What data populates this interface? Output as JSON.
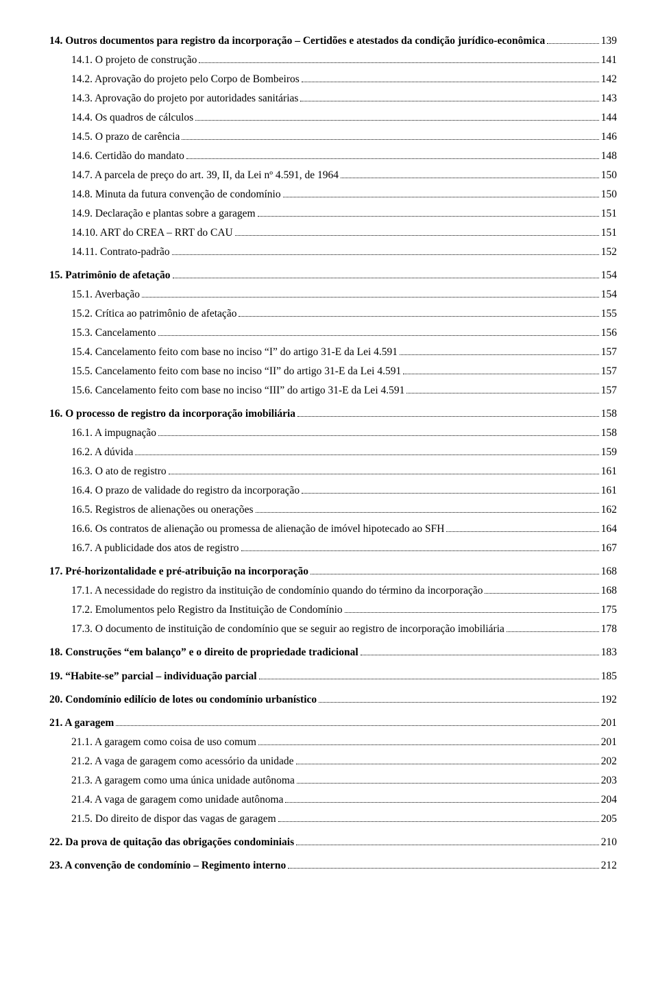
{
  "items": [
    {
      "lvl": 0,
      "bold": true,
      "text": "14. Outros documentos para registro da incorporação – Certidões e atestados da condição jurídico-econômica",
      "page": "139"
    },
    {
      "lvl": 1,
      "text": "14.1. O projeto de construção",
      "page": "141"
    },
    {
      "lvl": 1,
      "text": "14.2. Aprovação do projeto pelo Corpo de Bombeiros",
      "page": "142"
    },
    {
      "lvl": 1,
      "text": "14.3. Aprovação do projeto por autoridades sanitárias",
      "page": "143"
    },
    {
      "lvl": 1,
      "text": "14.4. Os quadros de cálculos",
      "page": "144"
    },
    {
      "lvl": 1,
      "text": "14.5. O prazo de carência",
      "page": "146"
    },
    {
      "lvl": 1,
      "text": "14.6. Certidão do mandato",
      "page": "148"
    },
    {
      "lvl": 1,
      "text": "14.7. A parcela de preço do art. 39, II, da Lei nº 4.591, de 1964",
      "page": "150"
    },
    {
      "lvl": 1,
      "text": "14.8. Minuta da futura convenção de condomínio",
      "page": "150"
    },
    {
      "lvl": 1,
      "text": "14.9. Declaração e plantas sobre a garagem",
      "page": "151"
    },
    {
      "lvl": 1,
      "text": "14.10. ART do CREA – RRT do CAU",
      "page": "151"
    },
    {
      "lvl": 1,
      "text": "14.11. Contrato-padrão",
      "page": "152"
    },
    {
      "lvl": 0,
      "bold": true,
      "text": "15. Patrimônio de afetação",
      "page": "154"
    },
    {
      "lvl": 1,
      "text": "15.1. Averbação",
      "page": "154"
    },
    {
      "lvl": 1,
      "text": "15.2. Crítica ao patrimônio de afetação",
      "page": "155"
    },
    {
      "lvl": 1,
      "text": "15.3. Cancelamento",
      "page": "156"
    },
    {
      "lvl": 1,
      "text": "15.4. Cancelamento feito com base no inciso “I” do artigo 31-E da  Lei 4.591",
      "page": "157"
    },
    {
      "lvl": 1,
      "text": "15.5. Cancelamento feito com base no inciso “II” do artigo 31-E da  Lei 4.591",
      "page": "157"
    },
    {
      "lvl": 1,
      "text": "15.6. Cancelamento feito com base no inciso “III” do artigo 31-E da  Lei 4.591",
      "page": "157"
    },
    {
      "lvl": 0,
      "bold": true,
      "text": "16. O processo de registro da incorporação  imobiliária",
      "page": "158"
    },
    {
      "lvl": 1,
      "text": "16.1. A impugnação",
      "page": "158"
    },
    {
      "lvl": 1,
      "text": "16.2. A dúvida",
      "page": "159"
    },
    {
      "lvl": 1,
      "text": "16.3. O ato de registro",
      "page": "161"
    },
    {
      "lvl": 1,
      "text": "16.4. O prazo de validade do registro da incorporação",
      "page": "161"
    },
    {
      "lvl": 1,
      "text": "16.5. Registros de alienações ou onerações",
      "page": "162"
    },
    {
      "lvl": 1,
      "text": "16.6. Os contratos de alienação ou promessa de alienação de imóvel  hipotecado ao SFH",
      "page": "164"
    },
    {
      "lvl": 1,
      "text": "16.7. A publicidade dos atos de registro",
      "page": "167"
    },
    {
      "lvl": 0,
      "bold": true,
      "text": "17. Pré-horizontalidade e pré-atribuição na incorporação",
      "page": "168"
    },
    {
      "lvl": 1,
      "text": "17.1. A necessidade do registro da instituição de condomínio quando do término da incorporação",
      "page": "168"
    },
    {
      "lvl": 1,
      "text": "17.2. Emolumentos pelo Registro da Instituição de Condomínio",
      "page": "175"
    },
    {
      "lvl": 1,
      "text": "17.3. O documento de instituição de condomínio que se seguir ao  registro de incorporação imobiliária",
      "page": "178"
    },
    {
      "lvl": 0,
      "bold": true,
      "text": "18. Construções “em balanço” e o direito de propriedade tradicional",
      "page": "183"
    },
    {
      "lvl": 0,
      "bold": true,
      "text": "19. “Habite-se” parcial – individuação  parcial",
      "page": "185"
    },
    {
      "lvl": 0,
      "bold": true,
      "text": "20. Condomínio edilício de lotes ou condomínio urbanístico",
      "page": "192"
    },
    {
      "lvl": 0,
      "bold": true,
      "text": "21. A garagem",
      "page": "201"
    },
    {
      "lvl": 1,
      "text": "21.1. A garagem como coisa de uso comum",
      "page": "201"
    },
    {
      "lvl": 1,
      "text": "21.2. A vaga de garagem como acessório da unidade",
      "page": "202"
    },
    {
      "lvl": 1,
      "text": "21.3. A garagem como uma única unidade autônoma",
      "page": "203"
    },
    {
      "lvl": 1,
      "text": "21.4. A vaga de garagem como unidade autônoma",
      "page": "204"
    },
    {
      "lvl": 1,
      "text": "21.5. Do direito de dispor das vagas de garagem",
      "page": "205"
    },
    {
      "lvl": 0,
      "bold": true,
      "text": "22. Da prova de quitação das obrigações condominiais",
      "page": "210"
    },
    {
      "lvl": 0,
      "bold": true,
      "text": "23. A convenção de condomínio – Regimento interno",
      "page": "212"
    }
  ]
}
